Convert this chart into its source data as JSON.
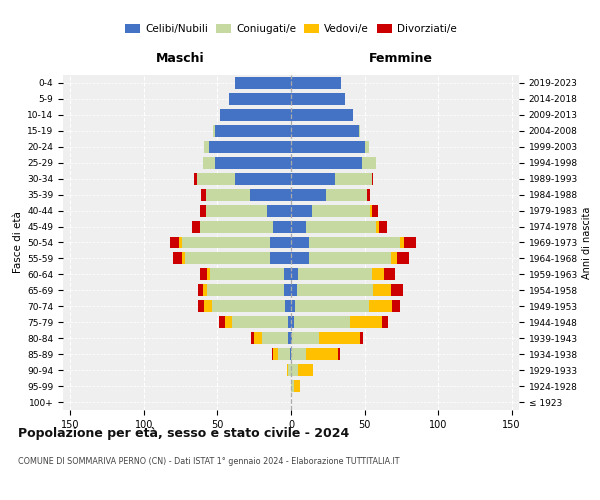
{
  "age_groups": [
    "100+",
    "95-99",
    "90-94",
    "85-89",
    "80-84",
    "75-79",
    "70-74",
    "65-69",
    "60-64",
    "55-59",
    "50-54",
    "45-49",
    "40-44",
    "35-39",
    "30-34",
    "25-29",
    "20-24",
    "15-19",
    "10-14",
    "5-9",
    "0-4"
  ],
  "birth_years": [
    "≤ 1923",
    "1924-1928",
    "1929-1933",
    "1934-1938",
    "1939-1943",
    "1944-1948",
    "1949-1953",
    "1954-1958",
    "1959-1963",
    "1964-1968",
    "1969-1973",
    "1974-1978",
    "1979-1983",
    "1984-1988",
    "1989-1993",
    "1994-1998",
    "1999-2003",
    "2004-2008",
    "2009-2013",
    "2014-2018",
    "2019-2023"
  ],
  "maschi": {
    "celibi": [
      0,
      0,
      0,
      1,
      2,
      2,
      4,
      5,
      5,
      14,
      14,
      12,
      16,
      28,
      38,
      52,
      56,
      52,
      48,
      42,
      38
    ],
    "coniugati": [
      0,
      0,
      2,
      8,
      18,
      38,
      50,
      52,
      50,
      58,
      60,
      50,
      42,
      30,
      26,
      8,
      3,
      1,
      0,
      0,
      0
    ],
    "vedovi": [
      0,
      0,
      1,
      3,
      5,
      5,
      5,
      3,
      2,
      2,
      2,
      0,
      0,
      0,
      0,
      0,
      0,
      0,
      0,
      0,
      0
    ],
    "divorziati": [
      0,
      0,
      0,
      1,
      2,
      4,
      4,
      3,
      5,
      6,
      6,
      5,
      4,
      3,
      2,
      0,
      0,
      0,
      0,
      0,
      0
    ]
  },
  "femmine": {
    "nubili": [
      0,
      0,
      0,
      0,
      1,
      2,
      3,
      4,
      5,
      12,
      12,
      10,
      14,
      24,
      30,
      48,
      50,
      46,
      42,
      37,
      34
    ],
    "coniugate": [
      0,
      2,
      5,
      10,
      18,
      38,
      50,
      52,
      50,
      56,
      62,
      48,
      40,
      28,
      25,
      10,
      3,
      1,
      0,
      0,
      0
    ],
    "vedove": [
      0,
      4,
      10,
      22,
      28,
      22,
      16,
      12,
      8,
      4,
      3,
      2,
      1,
      0,
      0,
      0,
      0,
      0,
      0,
      0,
      0
    ],
    "divorziate": [
      0,
      0,
      0,
      1,
      2,
      4,
      5,
      8,
      8,
      8,
      8,
      5,
      4,
      2,
      1,
      0,
      0,
      0,
      0,
      0,
      0
    ]
  },
  "colors": {
    "celibi": "#4472c4",
    "coniugati": "#c5d9a0",
    "vedovi": "#ffc000",
    "divorziati": "#cc0000"
  },
  "legend_labels": [
    "Celibi/Nubili",
    "Coniugati/e",
    "Vedovi/e",
    "Divorziati/e"
  ],
  "title": "Popolazione per età, sesso e stato civile - 2024",
  "subtitle": "COMUNE DI SOMMARIVA PERNO (CN) - Dati ISTAT 1° gennaio 2024 - Elaborazione TUTTITALIA.IT",
  "xlabel_left": "Maschi",
  "xlabel_right": "Femmine",
  "ylabel_left": "Fasce di età",
  "ylabel_right": "Anni di nascita",
  "xlim": 155,
  "background_color": "#ffffff",
  "plot_bg": "#efefef"
}
